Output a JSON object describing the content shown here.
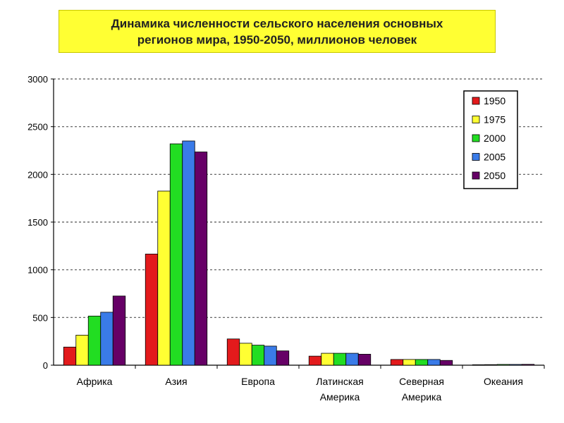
{
  "chart_data": {
    "type": "bar",
    "title": "Динамика численности сельского населения основных\nрегионов мира, 1950-2050, миллионов человек",
    "xlabel": "",
    "ylabel": "",
    "ylim": [
      0,
      3000
    ],
    "yticks": [
      0,
      500,
      1000,
      1500,
      2000,
      2500,
      3000
    ],
    "grid": true,
    "legend_position": "top-right",
    "categories": [
      "Африка",
      "Азия",
      "Европа",
      "Латинская\nАмерика",
      "Северная\nАмерика",
      "Океания"
    ],
    "series": [
      {
        "name": "1950",
        "color": "#e31a1c",
        "values": [
          190,
          1165,
          275,
          95,
          60,
          5
        ]
      },
      {
        "name": "1975",
        "color": "#ffff33",
        "values": [
          315,
          1825,
          230,
          125,
          60,
          6
        ]
      },
      {
        "name": "2000",
        "color": "#22dd22",
        "values": [
          515,
          2320,
          210,
          125,
          60,
          8
        ]
      },
      {
        "name": "2005",
        "color": "#3a7be8",
        "values": [
          555,
          2350,
          200,
          125,
          60,
          8
        ]
      },
      {
        "name": "2050",
        "color": "#660066",
        "values": [
          725,
          2235,
          150,
          115,
          50,
          9
        ]
      }
    ]
  }
}
